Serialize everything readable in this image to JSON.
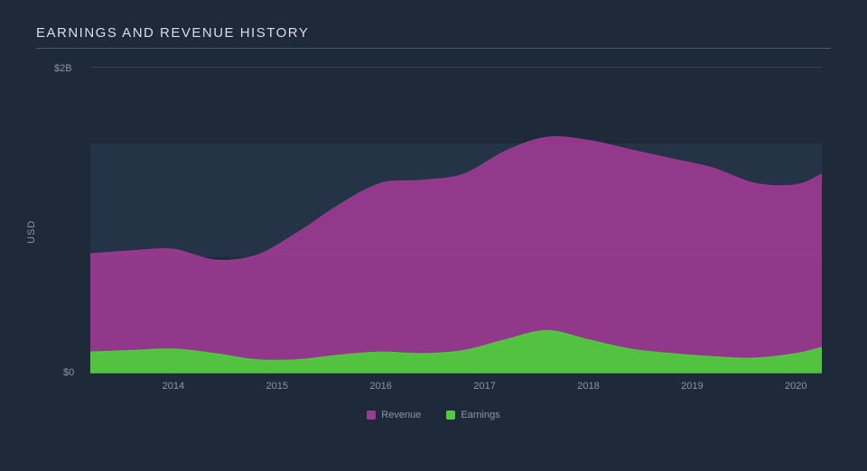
{
  "chart": {
    "type": "area",
    "title": "EARNINGS AND REVENUE HISTORY",
    "ylabel": "USD",
    "background_color": "#1e2a3a",
    "panel_color": "#253347",
    "grid_color": "#4a5a6e",
    "text_color": "#8a96a6",
    "title_color": "#d8dee6",
    "title_fontsize": 15,
    "label_fontsize": 11,
    "ylim": [
      0,
      2
    ],
    "ytick_labels": [
      "$0",
      "$2B"
    ],
    "ytick_values": [
      0,
      2
    ],
    "panel_y_range": [
      0.76,
      1.5
    ],
    "x_years": [
      2014,
      2015,
      2016,
      2017,
      2018,
      2019,
      2020
    ],
    "x_domain": [
      2013.2,
      2020.25
    ],
    "series": [
      {
        "name": "Revenue",
        "color": "#9b3a92",
        "fill_opacity": 0.92,
        "points": [
          [
            2013.2,
            0.78
          ],
          [
            2013.6,
            0.8
          ],
          [
            2014.0,
            0.81
          ],
          [
            2014.4,
            0.74
          ],
          [
            2014.8,
            0.77
          ],
          [
            2015.2,
            0.92
          ],
          [
            2015.6,
            1.1
          ],
          [
            2016.0,
            1.24
          ],
          [
            2016.4,
            1.26
          ],
          [
            2016.8,
            1.3
          ],
          [
            2017.2,
            1.45
          ],
          [
            2017.6,
            1.54
          ],
          [
            2018.0,
            1.52
          ],
          [
            2018.4,
            1.46
          ],
          [
            2018.8,
            1.4
          ],
          [
            2019.2,
            1.34
          ],
          [
            2019.6,
            1.24
          ],
          [
            2020.0,
            1.23
          ],
          [
            2020.25,
            1.3
          ]
        ]
      },
      {
        "name": "Earnings",
        "color": "#4fce3b",
        "fill_opacity": 0.92,
        "points": [
          [
            2013.2,
            0.14
          ],
          [
            2013.6,
            0.15
          ],
          [
            2014.0,
            0.16
          ],
          [
            2014.4,
            0.13
          ],
          [
            2014.8,
            0.09
          ],
          [
            2015.2,
            0.09
          ],
          [
            2015.6,
            0.12
          ],
          [
            2016.0,
            0.14
          ],
          [
            2016.4,
            0.13
          ],
          [
            2016.8,
            0.15
          ],
          [
            2017.2,
            0.22
          ],
          [
            2017.6,
            0.28
          ],
          [
            2018.0,
            0.22
          ],
          [
            2018.4,
            0.16
          ],
          [
            2018.8,
            0.13
          ],
          [
            2019.2,
            0.11
          ],
          [
            2019.6,
            0.1
          ],
          [
            2020.0,
            0.13
          ],
          [
            2020.25,
            0.17
          ]
        ]
      }
    ],
    "legend": {
      "items": [
        {
          "label": "Revenue",
          "color": "#9b3a92"
        },
        {
          "label": "Earnings",
          "color": "#4fce3b"
        }
      ]
    }
  }
}
